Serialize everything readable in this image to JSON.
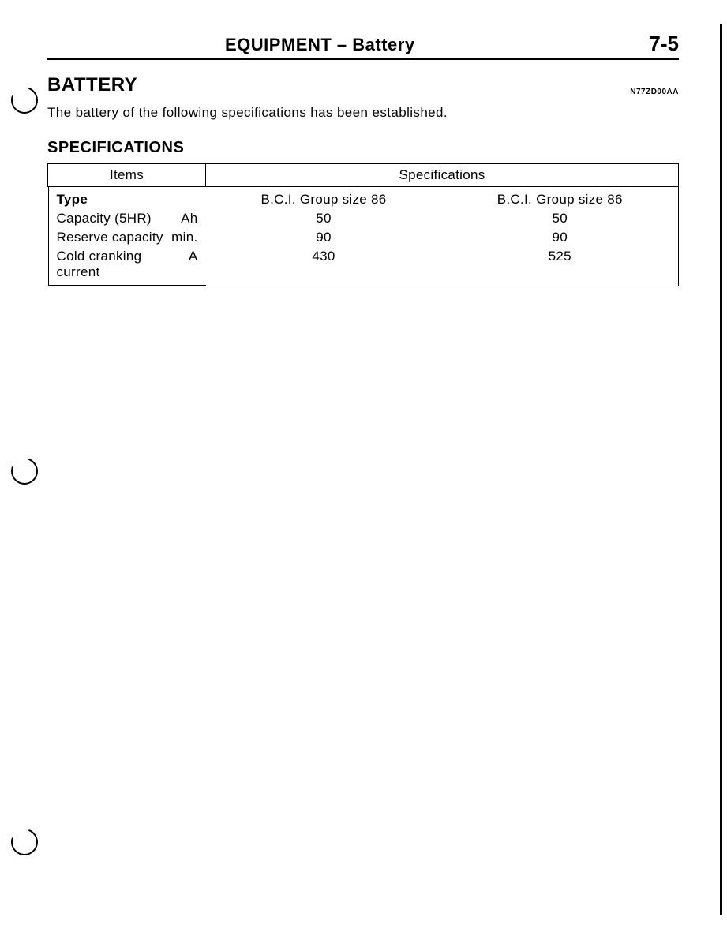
{
  "header": {
    "title": "EQUIPMENT – Battery",
    "page_number": "7-5"
  },
  "section": {
    "title": "BATTERY",
    "doc_code": "N77ZD00AA",
    "intro": "The battery of the following specifications has been established."
  },
  "subsection": {
    "title": "SPECIFICATIONS"
  },
  "table": {
    "columns": [
      "Items",
      "Specifications"
    ],
    "rows": [
      {
        "label": "Type",
        "label_bold": true,
        "unit": "",
        "col1": "B.C.I. Group size 86",
        "col2": "B.C.I. Group size 86"
      },
      {
        "label": "Capacity (5HR)",
        "label_bold": false,
        "unit": "Ah",
        "col1": "50",
        "col2": "50"
      },
      {
        "label": "Reserve capacity",
        "label_bold": false,
        "unit": "min.",
        "col1": "90",
        "col2": "90"
      },
      {
        "label": "Cold cranking current",
        "label_bold": false,
        "unit": "A",
        "col1": "430",
        "col2": "525"
      }
    ]
  },
  "colors": {
    "text": "#000000",
    "background": "#ffffff",
    "border": "#000000"
  }
}
